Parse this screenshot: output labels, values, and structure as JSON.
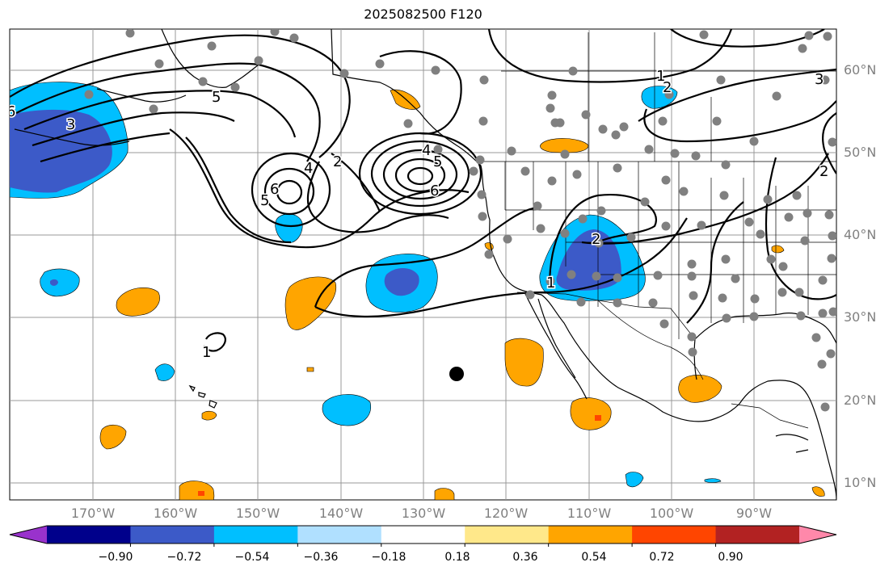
{
  "title": "2025082500 F120",
  "lat_labels": [
    {
      "id": "60n",
      "text": "60°N"
    },
    {
      "id": "50n",
      "text": "50°N"
    },
    {
      "id": "40n",
      "text": "40°N"
    },
    {
      "id": "30n",
      "text": "30°N"
    },
    {
      "id": "20n",
      "text": "20°N"
    },
    {
      "id": "10n",
      "text": "10°N"
    }
  ],
  "lon_labels": [
    {
      "id": "170w",
      "text": "170°W"
    },
    {
      "id": "160w",
      "text": "160°W"
    },
    {
      "id": "150w",
      "text": "150°W"
    },
    {
      "id": "140w",
      "text": "140°W"
    },
    {
      "id": "130w",
      "text": "130°W"
    },
    {
      "id": "120w",
      "text": "120°W"
    },
    {
      "id": "110w",
      "text": "110°W"
    },
    {
      "id": "100w",
      "text": "100°W"
    },
    {
      "id": "90w",
      "text": "90°W"
    }
  ],
  "contour_labels": [
    "6",
    "5",
    "3",
    "5",
    "6",
    "4",
    "2",
    "4",
    "5",
    "6",
    "1",
    "2",
    "1",
    "2",
    "3",
    "2",
    "1"
  ],
  "colorbar": {
    "ticks": [
      "−0.90",
      "−0.72",
      "−0.54",
      "−0.36",
      "−0.18",
      "0.18",
      "0.36",
      "0.54",
      "0.72",
      "0.90"
    ],
    "colors": [
      "#9932cc",
      "#00008b",
      "#3c5ac8",
      "#00bfff",
      "#b0e0ff",
      "#ffffff",
      "#ffe88a",
      "#ffa500",
      "#ff4500",
      "#b22222",
      "#ff88aa"
    ]
  },
  "colors": {
    "deep_blue": "#3c5ac8",
    "light_blue": "#00bfff",
    "orange": "#ffa500",
    "red": "#ff4500",
    "station": "#808080"
  }
}
